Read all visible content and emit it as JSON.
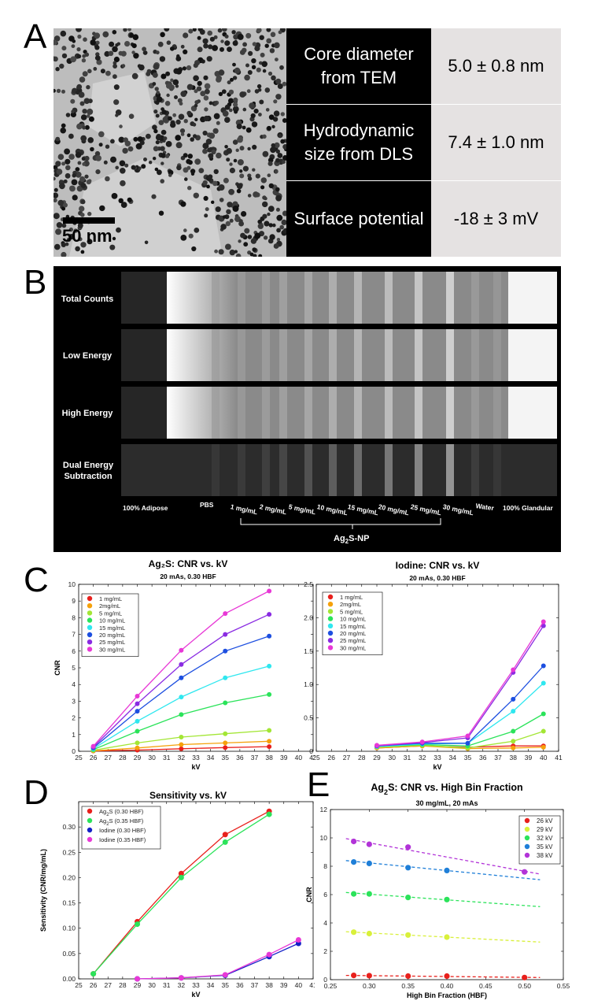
{
  "panel_letters": {
    "a": "A",
    "b": "B",
    "c": "C",
    "d": "D",
    "e": "E"
  },
  "panel_a": {
    "scale_bar_label": "50 nm",
    "properties": [
      {
        "label": "Core diameter from TEM",
        "value": "5.0 ± 0.8 nm"
      },
      {
        "label": "Hydrodynamic size from DLS",
        "value": "7.4 ± 1.0 nm"
      },
      {
        "label": "Surface potential",
        "value": "-18 ± 3 mV"
      }
    ]
  },
  "panel_b": {
    "row_labels": [
      "Total Counts",
      "Low Energy",
      "High Energy",
      "Dual Energy Subtraction"
    ],
    "column_labels": [
      "100% Adipose",
      "PBS",
      "1 mg/mL",
      "2 mg/mL",
      "5 mg/mL",
      "10 mg/mL",
      "15 mg/mL",
      "20 mg/mL",
      "25 mg/mL",
      "30 mg/mL",
      "Water",
      "100% Glandular"
    ],
    "group_label_main": "Ag",
    "group_label_sub": "2",
    "group_label_tail": "S-NP"
  },
  "chart_data": [
    {
      "panel": "C-left",
      "type": "line",
      "title": "Ag₂S: CNR vs. kV",
      "subtitle": "20 mAs, 0.30 HBF",
      "xlabel": "kV",
      "ylabel": "CNR",
      "xlim": [
        25,
        41
      ],
      "ylim": [
        0,
        10
      ],
      "xticks": [
        25,
        26,
        27,
        28,
        29,
        30,
        31,
        32,
        33,
        34,
        35,
        36,
        37,
        38,
        39,
        40,
        41
      ],
      "yticks": [
        0,
        1,
        2,
        3,
        4,
        5,
        6,
        7,
        8,
        9,
        10
      ],
      "legend_position": "top-left",
      "x": [
        26,
        29,
        32,
        35,
        38
      ],
      "series": [
        {
          "name": "1 mg/mL",
          "color": "#e8201c",
          "values": [
            0.02,
            0.07,
            0.15,
            0.22,
            0.28
          ]
        },
        {
          "name": "2mg/mL",
          "color": "#f5a10b",
          "values": [
            0.03,
            0.2,
            0.4,
            0.5,
            0.6
          ]
        },
        {
          "name": "5 mg/mL",
          "color": "#a3e635",
          "values": [
            0.06,
            0.5,
            0.85,
            1.05,
            1.25
          ]
        },
        {
          "name": "10 mg/mL",
          "color": "#2be35a",
          "values": [
            0.1,
            1.2,
            2.2,
            2.9,
            3.4
          ]
        },
        {
          "name": "15 mg/mL",
          "color": "#2fe7ef",
          "values": [
            0.15,
            1.8,
            3.25,
            4.4,
            5.1
          ]
        },
        {
          "name": "20 mg/mL",
          "color": "#1d4fe0",
          "values": [
            0.2,
            2.4,
            4.4,
            6.0,
            6.9
          ]
        },
        {
          "name": "25 mg/mL",
          "color": "#8a2be2",
          "values": [
            0.25,
            2.85,
            5.2,
            7.0,
            8.2
          ]
        },
        {
          "name": "30 mg/mL",
          "color": "#e838d6",
          "values": [
            0.3,
            3.3,
            6.05,
            8.25,
            9.6
          ]
        }
      ]
    },
    {
      "panel": "C-right",
      "type": "line",
      "title": "Iodine: CNR vs. kV",
      "subtitle": "20 mAs, 0.30 HBF",
      "xlabel": "kV",
      "ylabel": "CNR",
      "xlim": [
        25,
        41
      ],
      "ylim": [
        0,
        2.5
      ],
      "xticks": [
        25,
        26,
        27,
        28,
        29,
        30,
        31,
        32,
        33,
        34,
        35,
        36,
        37,
        38,
        39,
        40,
        41
      ],
      "yticks": [
        0,
        0.5,
        1.0,
        1.5,
        2.0,
        2.5
      ],
      "ytick_labels": [
        "0",
        "0.5",
        "1.0",
        "1.5",
        "2.0",
        "2.5"
      ],
      "legend_position": "top-left",
      "x": [
        29,
        32,
        35,
        38,
        40
      ],
      "series": [
        {
          "name": "1 mg/mL",
          "color": "#e8201c",
          "values": [
            0.05,
            0.08,
            0.06,
            0.08,
            0.08
          ]
        },
        {
          "name": "2mg/mL",
          "color": "#f5a10b",
          "values": [
            0.05,
            0.08,
            0.04,
            0.05,
            0.06
          ]
        },
        {
          "name": "5 mg/mL",
          "color": "#a3e635",
          "values": [
            0.06,
            0.09,
            0.05,
            0.15,
            0.3
          ]
        },
        {
          "name": "10 mg/mL",
          "color": "#2be35a",
          "values": [
            0.07,
            0.1,
            0.08,
            0.3,
            0.56
          ]
        },
        {
          "name": "15 mg/mL",
          "color": "#2fe7ef",
          "values": [
            0.07,
            0.11,
            0.12,
            0.6,
            1.02
          ]
        },
        {
          "name": "20 mg/mL",
          "color": "#1d4fe0",
          "values": [
            0.08,
            0.12,
            0.12,
            0.78,
            1.28
          ]
        },
        {
          "name": "25 mg/mL",
          "color": "#8a2be2",
          "values": [
            0.08,
            0.13,
            0.2,
            1.18,
            1.88
          ]
        },
        {
          "name": "30 mg/mL",
          "color": "#e838d6",
          "values": [
            0.09,
            0.14,
            0.23,
            1.22,
            1.94
          ]
        }
      ]
    },
    {
      "panel": "D",
      "type": "line",
      "title": "Sensitivity vs. kV",
      "xlabel": "kV",
      "ylabel": "Sensitivity (CNR/mg/mL)",
      "xlim": [
        25,
        41
      ],
      "ylim": [
        0,
        0.35
      ],
      "xticks": [
        25,
        26,
        27,
        28,
        29,
        30,
        31,
        32,
        33,
        34,
        35,
        36,
        37,
        38,
        39,
        40,
        41
      ],
      "yticks": [
        0,
        0.05,
        0.1,
        0.15,
        0.2,
        0.25,
        0.3
      ],
      "ytick_labels": [
        "0.00",
        "0.05",
        "0.10",
        "0.15",
        "0.20",
        "0.25",
        "0.30"
      ],
      "legend_position": "top-left",
      "series": [
        {
          "name_main": "Ag",
          "name_sub": "2",
          "name_tail": "S (0.30 HBF)",
          "color": "#e8201c",
          "x": [
            26,
            29,
            32,
            35,
            38
          ],
          "values": [
            0.01,
            0.113,
            0.208,
            0.285,
            0.331
          ]
        },
        {
          "name_main": "Ag",
          "name_sub": "2",
          "name_tail": "S (0.35 HBF)",
          "color": "#2be35a",
          "x": [
            26,
            29,
            32,
            35,
            38
          ],
          "values": [
            0.01,
            0.108,
            0.2,
            0.27,
            0.325
          ]
        },
        {
          "name_main": "Iodine (0.30 HBF)",
          "name_sub": "",
          "name_tail": "",
          "color": "#1420c8",
          "x": [
            29,
            32,
            35,
            38,
            40
          ],
          "values": [
            0.0,
            0.002,
            0.007,
            0.044,
            0.07
          ]
        },
        {
          "name_main": "Iodine (0.35 HBF)",
          "name_sub": "",
          "name_tail": "",
          "color": "#e838d6",
          "x": [
            29,
            32,
            35,
            38,
            40
          ],
          "values": [
            0.0,
            0.002,
            0.008,
            0.048,
            0.077
          ]
        }
      ]
    },
    {
      "panel": "E",
      "type": "scatter",
      "title_main": "Ag",
      "title_sub": "2",
      "title_tail": "S: CNR vs. High Bin Fraction",
      "subtitle": "30 mg/mL, 20 mAs",
      "xlabel": "High Bin Fraction (HBF)",
      "ylabel": "CNR",
      "xlim": [
        0.25,
        0.55
      ],
      "ylim": [
        0,
        12
      ],
      "xticks": [
        0.25,
        0.3,
        0.35,
        0.4,
        0.45,
        0.5,
        0.55
      ],
      "xtick_labels": [
        "0.25",
        "0.30",
        "0.35",
        "0.40",
        "0.45",
        "0.50",
        "0.55"
      ],
      "yticks": [
        0,
        2,
        4,
        6,
        8,
        10,
        12
      ],
      "legend_position": "top-right",
      "fit_range": [
        0.27,
        0.52
      ],
      "series": [
        {
          "name": "26 kV",
          "color": "#e8201c",
          "x": [
            0.28,
            0.3,
            0.35,
            0.4,
            0.5
          ],
          "values": [
            0.3,
            0.28,
            0.25,
            0.25,
            0.15
          ],
          "fit": [
            0.3,
            0.15
          ]
        },
        {
          "name": "29 kV",
          "color": "#d9f03a",
          "x": [
            0.28,
            0.3,
            0.35,
            0.4
          ],
          "values": [
            3.35,
            3.25,
            3.15,
            3.0
          ],
          "fit": [
            3.38,
            2.65
          ]
        },
        {
          "name": "32 kV",
          "color": "#2be35a",
          "x": [
            0.28,
            0.3,
            0.35,
            0.4
          ],
          "values": [
            6.05,
            6.05,
            5.8,
            5.65
          ],
          "fit": [
            6.15,
            5.15
          ]
        },
        {
          "name": "35 kV",
          "color": "#1f7fd8",
          "x": [
            0.28,
            0.3,
            0.35,
            0.4
          ],
          "values": [
            8.3,
            8.2,
            7.9,
            7.7
          ],
          "fit": [
            8.4,
            7.05
          ]
        },
        {
          "name": "38 kV",
          "color": "#b233d8",
          "x": [
            0.28,
            0.3,
            0.35,
            0.5
          ],
          "values": [
            9.75,
            9.55,
            9.35,
            7.6
          ],
          "fit": [
            9.95,
            7.45
          ]
        }
      ]
    }
  ]
}
